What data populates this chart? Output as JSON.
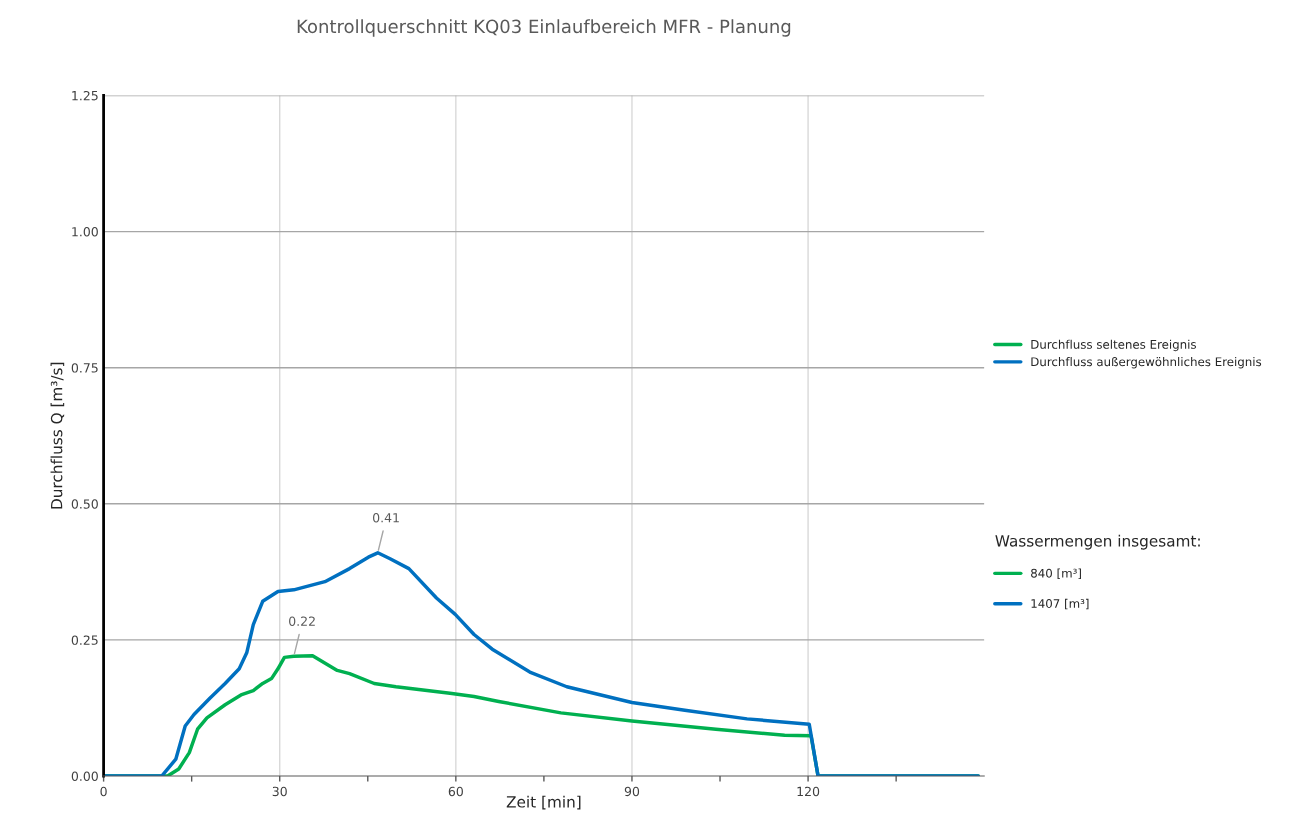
{
  "chart_data": {
    "type": "line",
    "title": "Kontrollquerschnitt KQ03 Einlaufbereich MFR - Planung",
    "xlabel": "Zeit [min]",
    "ylabel": "Durchfluss Q [m³/s]",
    "series": [
      {
        "name": "Durchfluss seltenes Ereignis",
        "color": "#00b050",
        "x": [
          0,
          10.9,
          12.8,
          14.6,
          16.0,
          17.6,
          20.7,
          23.4,
          25.5,
          27.1,
          28.6,
          29.7,
          30.8,
          32.4,
          35.6,
          39.8,
          41.9,
          46.1,
          49.8,
          55.1,
          59.0,
          63.1,
          67.3,
          77.9,
          90.0,
          104.3,
          116.0,
          120.5,
          121.7,
          149
        ],
        "values": [
          0,
          0,
          0.013,
          0.043,
          0.086,
          0.107,
          0.131,
          0.149,
          0.157,
          0.17,
          0.179,
          0.197,
          0.218,
          0.22,
          0.221,
          0.194,
          0.188,
          0.17,
          0.164,
          0.157,
          0.152,
          0.146,
          0.137,
          0.116,
          0.101,
          0.086,
          0.075,
          0.074,
          0,
          0
        ]
      },
      {
        "name": "Durchfluss außergewöhnliches Ereignis",
        "color": "#0070c0",
        "x": [
          0,
          9.9,
          12.3,
          13.9,
          15.4,
          18.1,
          20.7,
          23.1,
          24.4,
          25.5,
          27.1,
          29.7,
          32.4,
          37.7,
          41.9,
          45.1,
          46.7,
          48.8,
          52.0,
          56.7,
          59.9,
          63.1,
          66.2,
          72.6,
          78.9,
          90.0,
          99.0,
          109.6,
          120.2,
          121.7,
          149
        ],
        "values": [
          0,
          0,
          0.031,
          0.092,
          0.113,
          0.143,
          0.17,
          0.197,
          0.227,
          0.278,
          0.321,
          0.339,
          0.342,
          0.357,
          0.381,
          0.402,
          0.41,
          0.399,
          0.381,
          0.327,
          0.297,
          0.26,
          0.233,
          0.191,
          0.164,
          0.135,
          0.121,
          0.105,
          0.095,
          0,
          0
        ]
      }
    ],
    "annotations": [
      {
        "text": "0.22",
        "x": 32.4,
        "y": 0.22
      },
      {
        "text": "0.41",
        "x": 46.7,
        "y": 0.41
      },
      "840 [m³]",
      "1407 [m³]"
    ],
    "legend_title": "Wassermengen insgesamt:",
    "xlim": [
      0,
      150
    ],
    "xticks": [
      0,
      {
        "value": 15,
        "label": null
      },
      30,
      {
        "value": 45,
        "label": null
      },
      60,
      {
        "value": 75,
        "label": null
      },
      90,
      {
        "value": 105,
        "label": null
      },
      120,
      {
        "value": 135,
        "label": null
      }
    ],
    "ylim": [
      0,
      1.25
    ],
    "yticks": [
      {
        "value": 0,
        "label": "0.00"
      },
      {
        "value": 0.25,
        "label": "0.25"
      },
      {
        "value": 0.5,
        "label": "0.50"
      },
      {
        "value": 0.75,
        "label": "0.75"
      },
      {
        "value": 1.0,
        "label": "1.00"
      },
      {
        "value": 1.25,
        "label": "1.25"
      }
    ],
    "grid": true,
    "legend": "right",
    "marker": "none",
    "line_style": "solid"
  }
}
